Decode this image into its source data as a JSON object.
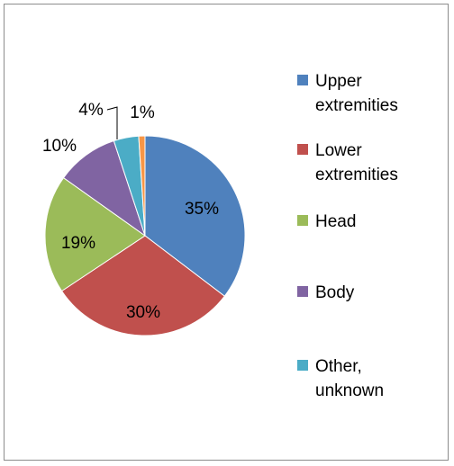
{
  "chart_data": {
    "type": "pie",
    "categories": [
      "Upper extremities",
      "Lower extremities",
      "Head",
      "Body",
      "Other, unknown",
      ""
    ],
    "values": [
      35,
      30,
      19,
      10,
      4,
      1
    ],
    "data_labels": [
      "35%",
      "30%",
      "19%",
      "10%",
      "4%",
      "1%"
    ],
    "colors": [
      "#4f81bd",
      "#c0504d",
      "#9bbb59",
      "#8064a2",
      "#4bacc6",
      "#f79646"
    ],
    "legend": {
      "placement": "right",
      "entries": [
        {
          "line1": "Upper",
          "line2": "extremities"
        },
        {
          "line1": "Lower",
          "line2": "extremities"
        },
        {
          "line1": "Head",
          "line2": ""
        },
        {
          "line1": "Body",
          "line2": ""
        },
        {
          "line1": "Other,",
          "line2": "unknown"
        }
      ]
    }
  }
}
